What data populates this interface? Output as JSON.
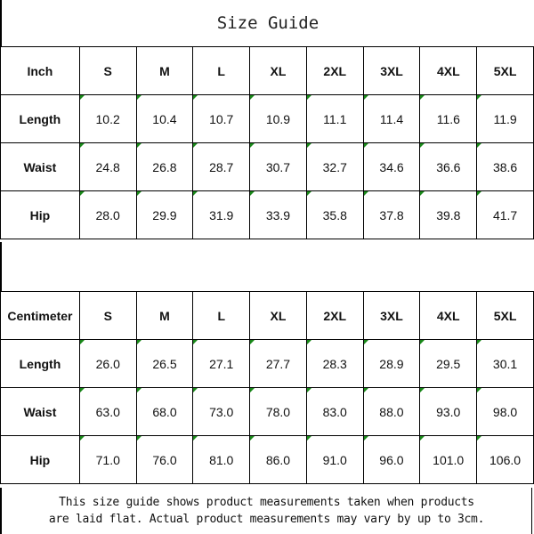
{
  "title": "Size Guide",
  "colors": {
    "border": "#000000",
    "corner_marker": "#1a8a1a"
  },
  "tables": [
    {
      "unit": "Inch",
      "sizes": [
        "S",
        "M",
        "L",
        "XL",
        "2XL",
        "3XL",
        "4XL",
        "5XL"
      ],
      "rows": [
        {
          "label": "Length",
          "values": [
            "10.2",
            "10.4",
            "10.7",
            "10.9",
            "11.1",
            "11.4",
            "11.6",
            "11.9"
          ]
        },
        {
          "label": "Waist",
          "values": [
            "24.8",
            "26.8",
            "28.7",
            "30.7",
            "32.7",
            "34.6",
            "36.6",
            "38.6"
          ]
        },
        {
          "label": "Hip",
          "values": [
            "28.0",
            "29.9",
            "31.9",
            "33.9",
            "35.8",
            "37.8",
            "39.8",
            "41.7"
          ]
        }
      ]
    },
    {
      "unit": "Centimeter",
      "sizes": [
        "S",
        "M",
        "L",
        "XL",
        "2XL",
        "3XL",
        "4XL",
        "5XL"
      ],
      "rows": [
        {
          "label": "Length",
          "values": [
            "26.0",
            "26.5",
            "27.1",
            "27.7",
            "28.3",
            "28.9",
            "29.5",
            "30.1"
          ]
        },
        {
          "label": "Waist",
          "values": [
            "63.0",
            "68.0",
            "73.0",
            "78.0",
            "83.0",
            "88.0",
            "93.0",
            "98.0"
          ]
        },
        {
          "label": "Hip",
          "values": [
            "71.0",
            "76.0",
            "81.0",
            "86.0",
            "91.0",
            "96.0",
            "101.0",
            "106.0"
          ]
        }
      ]
    }
  ],
  "note": {
    "line1": "This size guide shows product measurements taken when products",
    "line2": "are laid flat. Actual product measurements may vary by up to 3cm."
  }
}
